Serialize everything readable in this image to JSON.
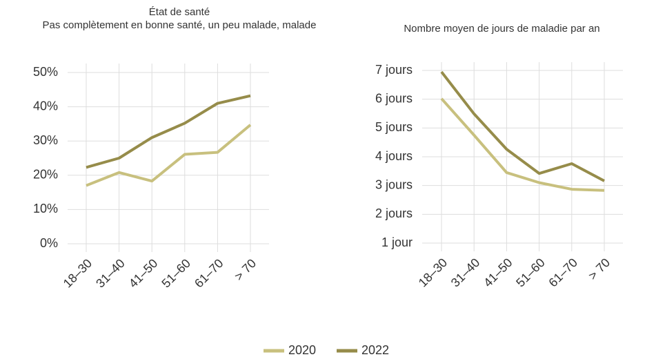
{
  "chart_data": [
    {
      "type": "line",
      "title": "État de santé",
      "subtitle": "Pas complètement en bonne santé, un peu malade, malade",
      "categories": [
        "18–30",
        "31–40",
        "41–50",
        "51–60",
        "61–70",
        "> 70"
      ],
      "series": [
        {
          "name": "2020",
          "color": "#c8c07e",
          "values": [
            17,
            20.8,
            18.3,
            26.1,
            26.7,
            34.7
          ]
        },
        {
          "name": "2022",
          "color": "#968c4a",
          "values": [
            22.3,
            25,
            31,
            35.2,
            41,
            43.2
          ]
        }
      ],
      "ylim": [
        0,
        50
      ],
      "yticks": [
        {
          "value": 0,
          "label": "0%"
        },
        {
          "value": 10,
          "label": "10%"
        },
        {
          "value": 20,
          "label": "20%"
        },
        {
          "value": 30,
          "label": "30%"
        },
        {
          "value": 40,
          "label": "40%"
        },
        {
          "value": 50,
          "label": "50%"
        }
      ],
      "grid": true
    },
    {
      "type": "line",
      "title": "Nombre moyen de jours de maladie par an",
      "categories": [
        "18–30",
        "31–40",
        "41–50",
        "51–60",
        "61–70",
        "> 70"
      ],
      "series": [
        {
          "color": "#c8c07e",
          "values": [
            6.02,
            4.75,
            3.45,
            3.1,
            2.87,
            2.83
          ]
        },
        {
          "color": "#968c4a",
          "values": [
            6.95,
            5.49,
            4.26,
            3.42,
            3.76,
            3.16
          ]
        }
      ],
      "ylim": [
        1,
        7
      ],
      "yticks": [
        {
          "value": 1,
          "label": "1 jour"
        },
        {
          "value": 2,
          "label": "2 jours"
        },
        {
          "value": 3,
          "label": "3 jours"
        },
        {
          "value": 4,
          "label": "4 jours"
        },
        {
          "value": 5,
          "label": "5 jours"
        },
        {
          "value": 6,
          "label": "6 jours"
        },
        {
          "value": 7,
          "label": "7 jours"
        }
      ],
      "grid": true
    }
  ]
}
